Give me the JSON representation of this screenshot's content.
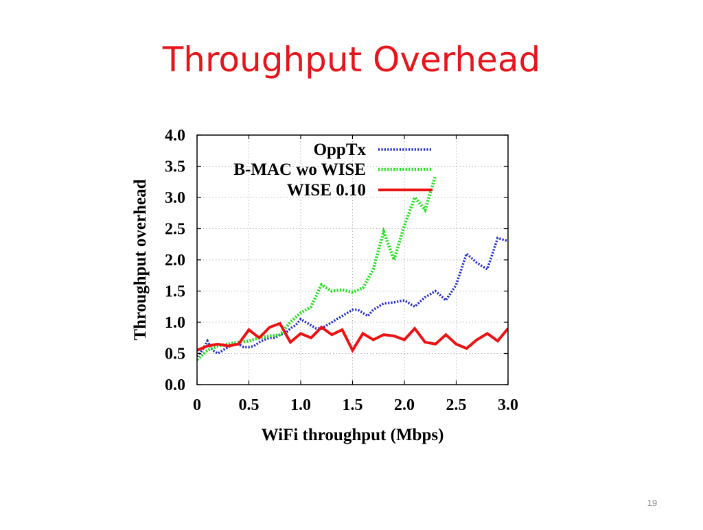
{
  "slide": {
    "title": "Throughput Overhead",
    "page_number": "19"
  },
  "chart_data": {
    "type": "line",
    "title": "",
    "xlabel": "WiFi throughput (Mbps)",
    "ylabel": "Throughput overhead",
    "xlim": [
      0,
      3.0
    ],
    "ylim": [
      0,
      4.0
    ],
    "xticks": [
      "0",
      "0.5",
      "1.0",
      "1.5",
      "2.0",
      "2.5",
      "3.0"
    ],
    "xtick_values": [
      0,
      0.5,
      1.0,
      1.5,
      2.0,
      2.5,
      3.0
    ],
    "yticks": [
      "0.0",
      "0.5",
      "1.0",
      "1.5",
      "2.0",
      "2.5",
      "3.0",
      "3.5",
      "4.0"
    ],
    "ytick_values": [
      0,
      0.5,
      1.0,
      1.5,
      2.0,
      2.5,
      3.0,
      3.5,
      4.0
    ],
    "grid": true,
    "legend_position": "top-right",
    "series": [
      {
        "name": "OppTx",
        "color": "#1f2ad6",
        "style": "dotted",
        "points": [
          [
            0,
            0.45
          ],
          [
            0.05,
            0.55
          ],
          [
            0.1,
            0.7
          ],
          [
            0.15,
            0.55
          ],
          [
            0.2,
            0.5
          ],
          [
            0.25,
            0.55
          ],
          [
            0.3,
            0.6
          ],
          [
            0.35,
            0.65
          ],
          [
            0.4,
            0.65
          ],
          [
            0.45,
            0.6
          ],
          [
            0.5,
            0.6
          ],
          [
            0.55,
            0.62
          ],
          [
            0.6,
            0.68
          ],
          [
            0.65,
            0.72
          ],
          [
            0.7,
            0.75
          ],
          [
            0.75,
            0.75
          ],
          [
            0.8,
            0.8
          ],
          [
            0.85,
            0.82
          ],
          [
            0.9,
            0.9
          ],
          [
            0.95,
            0.95
          ],
          [
            1.0,
            1.05
          ],
          [
            1.05,
            1.0
          ],
          [
            1.1,
            0.95
          ],
          [
            1.15,
            0.9
          ],
          [
            1.2,
            0.9
          ],
          [
            1.3,
            1.0
          ],
          [
            1.4,
            1.1
          ],
          [
            1.5,
            1.2
          ],
          [
            1.55,
            1.2
          ],
          [
            1.6,
            1.15
          ],
          [
            1.65,
            1.1
          ],
          [
            1.7,
            1.2
          ],
          [
            1.8,
            1.3
          ],
          [
            1.9,
            1.32
          ],
          [
            2.0,
            1.35
          ],
          [
            2.05,
            1.3
          ],
          [
            2.1,
            1.25
          ],
          [
            2.2,
            1.4
          ],
          [
            2.3,
            1.5
          ],
          [
            2.4,
            1.35
          ],
          [
            2.5,
            1.6
          ],
          [
            2.6,
            2.1
          ],
          [
            2.7,
            1.95
          ],
          [
            2.8,
            1.85
          ],
          [
            2.9,
            2.35
          ],
          [
            3.0,
            2.3
          ]
        ]
      },
      {
        "name": "B-MAC wo WISE",
        "color": "#22e01e",
        "style": "dotted",
        "points": [
          [
            0,
            0.4
          ],
          [
            0.1,
            0.55
          ],
          [
            0.2,
            0.62
          ],
          [
            0.3,
            0.65
          ],
          [
            0.4,
            0.68
          ],
          [
            0.5,
            0.7
          ],
          [
            0.6,
            0.75
          ],
          [
            0.7,
            0.78
          ],
          [
            0.8,
            0.8
          ],
          [
            0.9,
            1.0
          ],
          [
            1.0,
            1.15
          ],
          [
            1.1,
            1.25
          ],
          [
            1.2,
            1.6
          ],
          [
            1.3,
            1.5
          ],
          [
            1.4,
            1.52
          ],
          [
            1.5,
            1.48
          ],
          [
            1.6,
            1.55
          ],
          [
            1.7,
            1.85
          ],
          [
            1.8,
            2.45
          ],
          [
            1.9,
            2.0
          ],
          [
            2.0,
            2.55
          ],
          [
            2.1,
            3.0
          ],
          [
            2.2,
            2.8
          ],
          [
            2.3,
            3.35
          ]
        ]
      },
      {
        "name": "WISE 0.10",
        "color": "#ee1111",
        "style": "solid",
        "points": [
          [
            0,
            0.55
          ],
          [
            0.1,
            0.62
          ],
          [
            0.2,
            0.65
          ],
          [
            0.3,
            0.62
          ],
          [
            0.4,
            0.65
          ],
          [
            0.5,
            0.88
          ],
          [
            0.6,
            0.75
          ],
          [
            0.7,
            0.92
          ],
          [
            0.8,
            0.98
          ],
          [
            0.9,
            0.68
          ],
          [
            1.0,
            0.82
          ],
          [
            1.1,
            0.75
          ],
          [
            1.2,
            0.92
          ],
          [
            1.3,
            0.8
          ],
          [
            1.4,
            0.88
          ],
          [
            1.5,
            0.55
          ],
          [
            1.6,
            0.82
          ],
          [
            1.7,
            0.72
          ],
          [
            1.8,
            0.8
          ],
          [
            1.9,
            0.78
          ],
          [
            2.0,
            0.72
          ],
          [
            2.1,
            0.9
          ],
          [
            2.2,
            0.68
          ],
          [
            2.3,
            0.65
          ],
          [
            2.4,
            0.8
          ],
          [
            2.5,
            0.65
          ],
          [
            2.6,
            0.58
          ],
          [
            2.7,
            0.72
          ],
          [
            2.8,
            0.82
          ],
          [
            2.9,
            0.7
          ],
          [
            3.0,
            0.9
          ]
        ]
      }
    ]
  }
}
